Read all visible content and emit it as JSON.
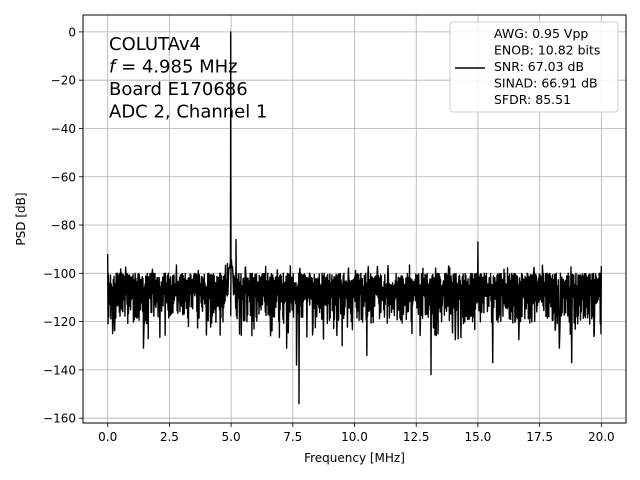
{
  "chart_data": {
    "type": "line",
    "xlabel": "Frequency [MHz]",
    "ylabel": "PSD [dB]",
    "xlim": [
      -1.0,
      21.0
    ],
    "ylim": [
      -162,
      7
    ],
    "x_ticks": [
      0.0,
      2.5,
      5.0,
      7.5,
      10.0,
      12.5,
      15.0,
      17.5,
      20.0
    ],
    "x_tick_labels": [
      "0.0",
      "2.5",
      "5.0",
      "7.5",
      "10.0",
      "12.5",
      "15.0",
      "17.5",
      "20.0"
    ],
    "y_ticks": [
      0,
      -20,
      -40,
      -60,
      -80,
      -100,
      -120,
      -140,
      -160
    ],
    "y_tick_labels": [
      "0",
      "−20",
      "−40",
      "−60",
      "−80",
      "−100",
      "−120",
      "−140",
      "−160"
    ],
    "grid": true,
    "line_color": "#000000",
    "annotation_lines": [
      "COLUTAv4",
      "f = 4.985 MHz",
      "Board E170686",
      "ADC 2, Channel 1"
    ],
    "legend": {
      "position": "top-right",
      "lines": [
        "AWG: 0.95 Vpp",
        "ENOB: 10.82 bits",
        "SNR: 67.03 dB",
        "SINAD: 66.91 dB",
        "SFDR: 85.51"
      ]
    },
    "series": [
      {
        "color": "#000000",
        "description": "FFT power spectrum, noise floor approx -108 dB between -98 and -122 dB",
        "fundamental": {
          "x": 4.985,
          "y": 0
        },
        "start": {
          "x": 0.0,
          "y": -92
        },
        "notable_points": [
          {
            "x": 0.2,
            "y": -125
          },
          {
            "x": 1.45,
            "y": -131
          },
          {
            "x": 4.85,
            "y": -96
          },
          {
            "x": 5.2,
            "y": -86
          },
          {
            "x": 7.25,
            "y": -131
          },
          {
            "x": 7.75,
            "y": -154
          },
          {
            "x": 7.65,
            "y": -138
          },
          {
            "x": 9.5,
            "y": -130
          },
          {
            "x": 10.5,
            "y": -134
          },
          {
            "x": 13.1,
            "y": -142
          },
          {
            "x": 15.0,
            "y": -87
          },
          {
            "x": 15.6,
            "y": -137
          },
          {
            "x": 18.3,
            "y": -131
          },
          {
            "x": 18.8,
            "y": -137
          },
          {
            "x": 20.0,
            "y": -97
          }
        ]
      }
    ]
  }
}
